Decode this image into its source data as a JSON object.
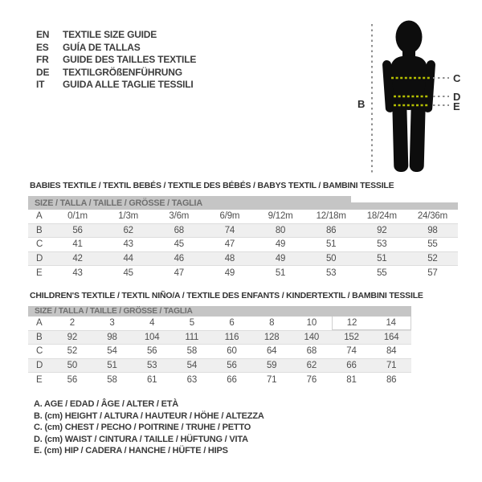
{
  "header": {
    "languages": [
      {
        "code": "EN",
        "label": "TEXTILE SIZE GUIDE"
      },
      {
        "code": "ES",
        "label": "GUÍA DE TALLAS"
      },
      {
        "code": "FR",
        "label": "GUIDE DES TAILLES TEXTILE"
      },
      {
        "code": "DE",
        "label": "TEXTILGRÖßENFÜHRUNG"
      },
      {
        "code": "IT",
        "label": "GUIDA ALLE TAGLIE TESSILI"
      }
    ]
  },
  "figure": {
    "labels": {
      "height": "B",
      "chest": "C",
      "waist": "D",
      "hip": "E"
    },
    "colors": {
      "silhouette": "#0d0d0d",
      "measure_dash": "#b5bf00",
      "guide_dash": "#8f8f8f"
    }
  },
  "babies_table": {
    "title": "BABIES TEXTILE / TEXTIL BEBÉS / TEXTILE DES BÉBÉS / BABYS TEXTIL / BAMBINI TESSILE",
    "size_header": "SIZE / TALLA / TAILLE / GRÖSSE / TAGLIA",
    "rows": [
      {
        "label": "A",
        "values": [
          "0/1m",
          "1/3m",
          "3/6m",
          "6/9m",
          "9/12m",
          "12/18m",
          "18/24m",
          "24/36m"
        ]
      },
      {
        "label": "B",
        "values": [
          "56",
          "62",
          "68",
          "74",
          "80",
          "86",
          "92",
          "98"
        ]
      },
      {
        "label": "C",
        "values": [
          "41",
          "43",
          "45",
          "47",
          "49",
          "51",
          "53",
          "55"
        ]
      },
      {
        "label": "D",
        "values": [
          "42",
          "44",
          "46",
          "48",
          "49",
          "50",
          "51",
          "52"
        ]
      },
      {
        "label": "E",
        "values": [
          "43",
          "45",
          "47",
          "49",
          "51",
          "53",
          "55",
          "57"
        ]
      }
    ]
  },
  "children_table": {
    "title": "CHILDREN'S TEXTILE / TEXTIL NIÑO/A / TEXTILE DES ENFANTS / KINDERTEXTIL / BAMBINI TESSILE",
    "size_header": "SIZE / TALLA / TAILLE / GRÖSSE / TAGLIA",
    "rows": [
      {
        "label": "A",
        "values": [
          "2",
          "3",
          "4",
          "5",
          "6",
          "8",
          "10",
          "12",
          "14"
        ]
      },
      {
        "label": "B",
        "values": [
          "92",
          "98",
          "104",
          "111",
          "116",
          "128",
          "140",
          "152",
          "164"
        ]
      },
      {
        "label": "C",
        "values": [
          "52",
          "54",
          "56",
          "58",
          "60",
          "64",
          "68",
          "74",
          "84"
        ]
      },
      {
        "label": "D",
        "values": [
          "50",
          "51",
          "53",
          "54",
          "56",
          "59",
          "62",
          "66",
          "71"
        ]
      },
      {
        "label": "E",
        "values": [
          "56",
          "58",
          "61",
          "63",
          "66",
          "71",
          "76",
          "81",
          "86"
        ]
      }
    ]
  },
  "legend": {
    "items": [
      "A. AGE / EDAD / ÂGE / ALTER / ETÀ",
      "B. (cm) HEIGHT / ALTURA / HAUTEUR / HÖHE / ALTEZZA",
      "C. (cm) CHEST / PECHO / POITRINE / TRUHE / PETTO",
      "D. (cm) WAIST / CINTURA / TAILLE / HÜFTUNG / VITA",
      "E. (cm) HIP / CADERA / HANCHE / HÜFTE / HIPS"
    ]
  }
}
